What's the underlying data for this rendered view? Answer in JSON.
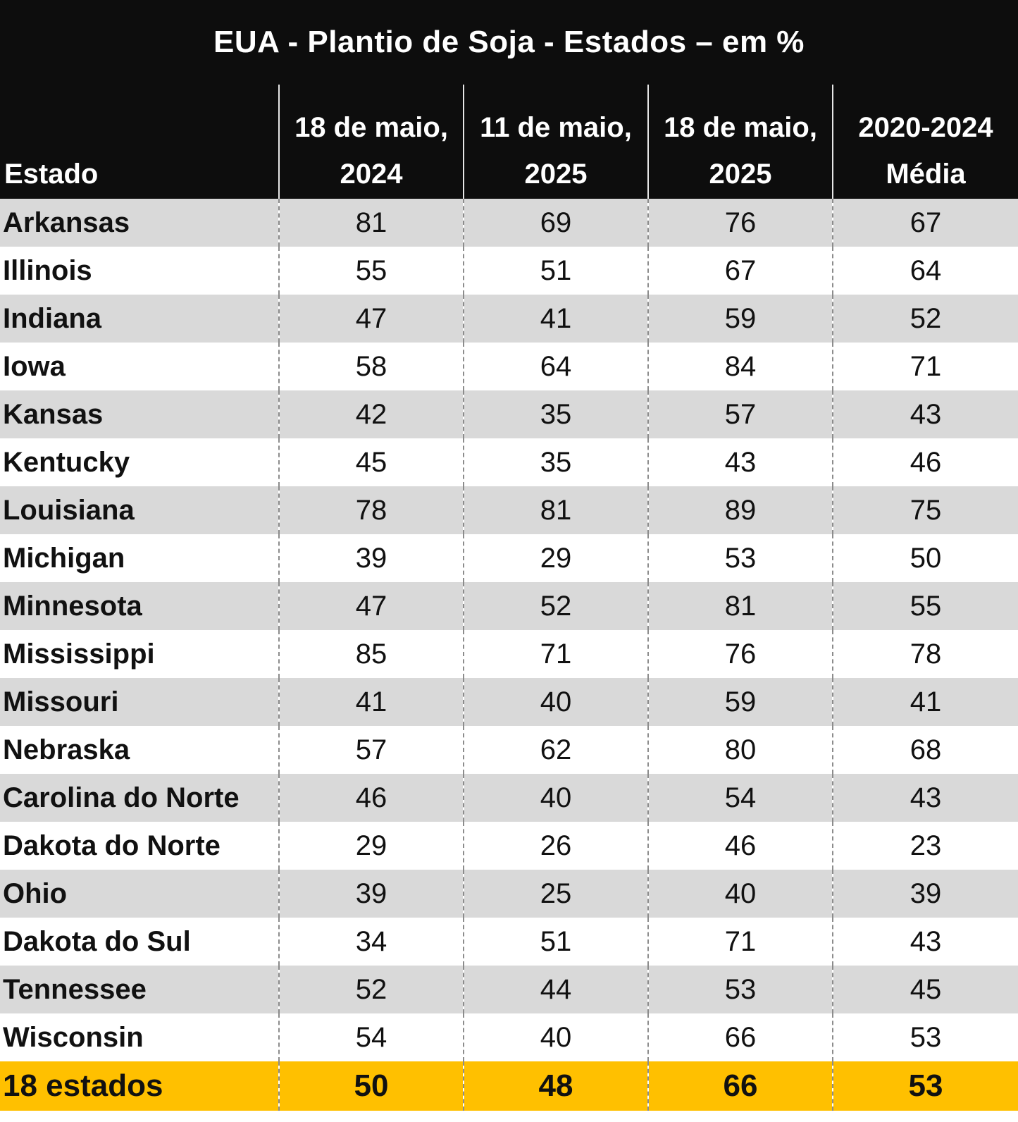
{
  "title": "EUA - Plantio de Soja - Estados – em %",
  "colors": {
    "header_bg": "#0d0d0d",
    "row_shade": "#d9d9d9",
    "total_row": "#ffc000"
  },
  "chart_data": {
    "type": "table",
    "title": "EUA - Plantio de Soja - Estados – em %",
    "columns": [
      {
        "line1": "",
        "line2": "Estado"
      },
      {
        "line1": "18 de maio,",
        "line2": "2024"
      },
      {
        "line1": "11 de maio,",
        "line2": "2025"
      },
      {
        "line1": "18 de maio,",
        "line2": "2025"
      },
      {
        "line1": "2020-2024",
        "line2": "Média"
      }
    ],
    "rows": [
      {
        "state": "Arkansas",
        "values": [
          "81",
          "69",
          "76",
          "67"
        ]
      },
      {
        "state": "Illinois",
        "values": [
          "55",
          "51",
          "67",
          "64"
        ]
      },
      {
        "state": "Indiana",
        "values": [
          "47",
          "41",
          "59",
          "52"
        ]
      },
      {
        "state": "Iowa",
        "values": [
          "58",
          "64",
          "84",
          "71"
        ]
      },
      {
        "state": "Kansas",
        "values": [
          "42",
          "35",
          "57",
          "43"
        ]
      },
      {
        "state": "Kentucky",
        "values": [
          "45",
          "35",
          "43",
          "46"
        ]
      },
      {
        "state": "Louisiana",
        "values": [
          "78",
          "81",
          "89",
          "75"
        ]
      },
      {
        "state": "Michigan",
        "values": [
          "39",
          "29",
          "53",
          "50"
        ]
      },
      {
        "state": "Minnesota",
        "values": [
          "47",
          "52",
          "81",
          "55"
        ]
      },
      {
        "state": "Mississippi",
        "values": [
          "85",
          "71",
          "76",
          "78"
        ]
      },
      {
        "state": "Missouri",
        "values": [
          "41",
          "40",
          "59",
          "41"
        ]
      },
      {
        "state": "Nebraska",
        "values": [
          "57",
          "62",
          "80",
          "68"
        ]
      },
      {
        "state": "Carolina do Norte",
        "values": [
          "46",
          "40",
          "54",
          "43"
        ]
      },
      {
        "state": "Dakota do Norte",
        "values": [
          "29",
          "26",
          "46",
          "23"
        ]
      },
      {
        "state": "Ohio",
        "values": [
          "39",
          "25",
          "40",
          "39"
        ]
      },
      {
        "state": "Dakota do Sul",
        "values": [
          "34",
          "51",
          "71",
          "43"
        ]
      },
      {
        "state": "Tennessee",
        "values": [
          "52",
          "44",
          "53",
          "45"
        ]
      },
      {
        "state": "Wisconsin",
        "values": [
          "54",
          "40",
          "66",
          "53"
        ]
      }
    ],
    "total": {
      "state": "18 estados",
      "values": [
        "50",
        "48",
        "66",
        "53"
      ]
    }
  }
}
